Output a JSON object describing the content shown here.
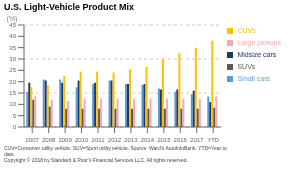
{
  "chart_data": {
    "type": "bar",
    "title": "U.S. Light-Vehicle Product Mix",
    "categories": [
      "2007",
      "2008",
      "2009",
      "2010",
      "2011",
      "2012",
      "2013",
      "2014",
      "2015",
      "2016",
      "2017",
      "YTD\n2018"
    ],
    "series": [
      {
        "name": "Small cars",
        "color": "#5b9bd5",
        "values": [
          15.5,
          21.0,
          21.0,
          17.5,
          19.0,
          20.5,
          19.0,
          18.5,
          17.0,
          15.5,
          14.5,
          13.5
        ]
      },
      {
        "name": "Midsize cars",
        "color": "#203864",
        "values": [
          19.5,
          20.5,
          19.5,
          20.5,
          19.5,
          20.5,
          19.0,
          19.0,
          16.5,
          16.5,
          16.0,
          11.0
        ]
      },
      {
        "name": "CUVs",
        "color": "#ffc000",
        "values": [
          17.5,
          18.5,
          22.5,
          24.5,
          24.5,
          24.0,
          25.5,
          26.5,
          30.0,
          32.5,
          35.0,
          38.0
        ]
      },
      {
        "name": "SUVs",
        "color": "#595959",
        "values": [
          12.0,
          9.0,
          8.0,
          8.0,
          8.0,
          8.0,
          8.0,
          8.0,
          8.0,
          8.0,
          8.0,
          8.5
        ]
      },
      {
        "name": "Large pickups",
        "color": "#f4a8b0",
        "values": [
          13.5,
          12.0,
          11.5,
          12.5,
          12.5,
          12.5,
          12.5,
          12.5,
          12.5,
          12.5,
          12.5,
          13.5
        ]
      }
    ],
    "ylabel": "(%)",
    "ylim": [
      0,
      45
    ],
    "yticks": [
      0,
      5,
      10,
      15,
      20,
      25,
      30,
      35,
      40,
      45
    ],
    "grid": true,
    "legend": "right",
    "annotations": [
      "CUV=Crossover utility vehicle. SUV=Sport utility vehicle. Source: Ward's AutoInfoBank. YTD=Year to",
      "date.",
      "Copyright © 2018 by Standard & Poor's Financial Services LLC. All rights reserved."
    ]
  }
}
